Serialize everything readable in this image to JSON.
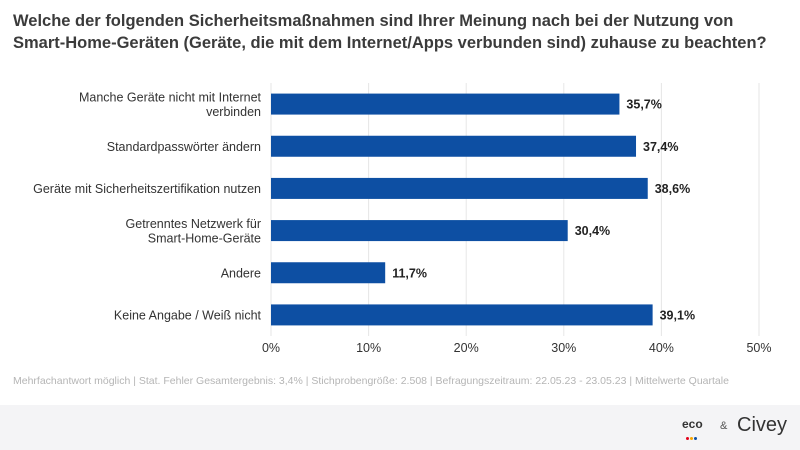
{
  "title": "Welche der folgenden Sicherheitsmaßnahmen sind Ihrer Meinung nach bei der Nutzung von Smart-Home-Geräten (Geräte, die mit dem Internet/Apps verbunden sind) zuhause zu beachten?",
  "footnote": "Mehrfachantwort möglich | Stat. Fehler Gesamtergebnis: 3,4% | Stichprobengröße: 2.508 | Befragungszeitraum: 22.05.23 - 23.05.23 | Mittelwerte Quartale",
  "logos": {
    "eco": "eco",
    "amp": "&",
    "civey": "Civey"
  },
  "colors": {
    "bar": "#0d4fa3",
    "grid": "#e6e6e6",
    "eco_dots": [
      "#e2001a",
      "#f7a600",
      "#0d4fa3"
    ]
  },
  "chart_data": {
    "type": "bar",
    "orientation": "horizontal",
    "categories": [
      [
        "Manche Geräte nicht mit Internet",
        "verbinden"
      ],
      [
        "Standardpasswörter ändern"
      ],
      [
        "Geräte mit Sicherheitszertifikation nutzen"
      ],
      [
        "Getrenntes Netzwerk für",
        "Smart-Home-Geräte"
      ],
      [
        "Andere"
      ],
      [
        "Keine Angabe / Weiß nicht"
      ]
    ],
    "values": [
      35.7,
      37.4,
      38.6,
      30.4,
      11.7,
      39.1
    ],
    "value_labels": [
      "35,7%",
      "37,4%",
      "38,6%",
      "30,4%",
      "11,7%",
      "39,1%"
    ],
    "xlim": [
      0,
      50
    ],
    "xticks": [
      0,
      10,
      20,
      30,
      40,
      50
    ],
    "xtick_labels": [
      "0%",
      "10%",
      "20%",
      "30%",
      "40%",
      "50%"
    ],
    "grid": true
  }
}
